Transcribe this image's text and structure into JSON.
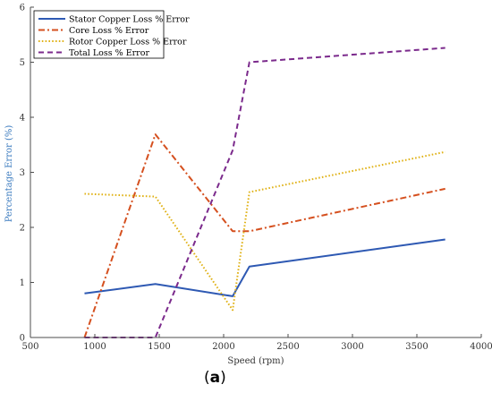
{
  "figure_label": {
    "open": "(",
    "letter": "a",
    "close": ")"
  },
  "chart_data": {
    "type": "line",
    "title": "",
    "xlabel": "Speed (rpm)",
    "ylabel": "Percentage Error (%)",
    "xlim": [
      500,
      4000
    ],
    "ylim": [
      0,
      6
    ],
    "xticks": [
      500,
      1000,
      1500,
      2000,
      2500,
      3000,
      3500,
      4000
    ],
    "yticks": [
      0,
      1,
      2,
      3,
      4,
      5,
      6
    ],
    "grid": false,
    "legend_position": "top-left",
    "axis_color": "#4d4d4d",
    "ylabel_color": "#3b7bbf",
    "series": [
      {
        "name": "Stator Copper Loss % Error",
        "color": "#2e59b3",
        "dash": "solid",
        "x": [
          920,
          1470,
          2070,
          2200,
          3720
        ],
        "y": [
          0.8,
          0.97,
          0.75,
          1.29,
          1.78
        ]
      },
      {
        "name": "Core Loss % Error",
        "color": "#d5501f",
        "dash": "dashdot",
        "x": [
          920,
          1470,
          2070,
          2200,
          3720
        ],
        "y": [
          0.0,
          3.69,
          1.93,
          1.93,
          2.7
        ]
      },
      {
        "name": "Rotor Copper Loss % Error",
        "color": "#e0b217",
        "dash": "dotted",
        "x": [
          920,
          1470,
          2070,
          2200,
          3720
        ],
        "y": [
          2.61,
          2.56,
          0.5,
          2.64,
          3.37
        ]
      },
      {
        "name": "Total Loss % Error",
        "color": "#7b2a8c",
        "dash": "dashed",
        "x": [
          920,
          1470,
          2070,
          2200,
          3720
        ],
        "y": [
          0.0,
          0.0,
          3.4,
          5.0,
          5.26
        ]
      }
    ]
  }
}
